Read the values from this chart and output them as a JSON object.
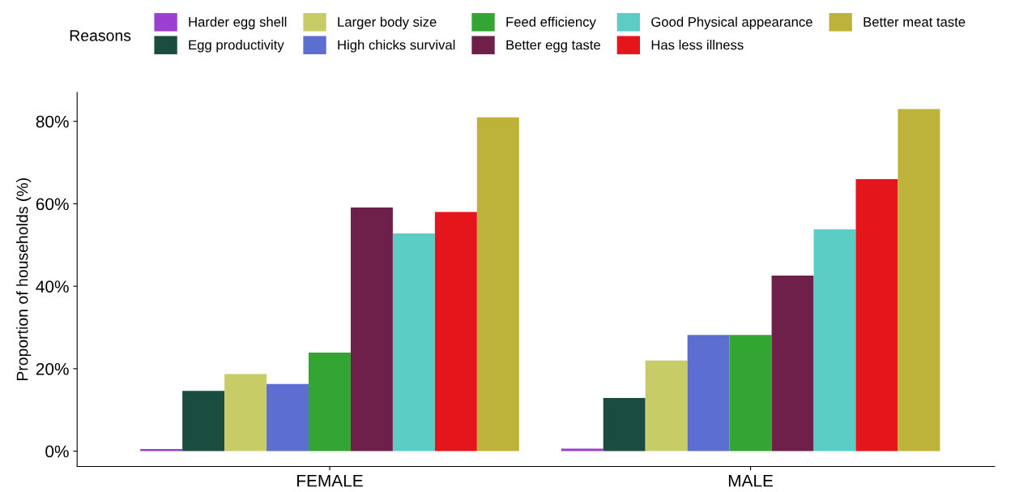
{
  "chart_data": {
    "type": "bar",
    "ylabel": "Proportion of households (%)",
    "legend_title": "Reasons",
    "categories": [
      "FEMALE",
      "MALE"
    ],
    "series": [
      {
        "name": "Harder egg shell",
        "color": "#9b3fd0",
        "values": [
          0.5,
          0.6
        ]
      },
      {
        "name": "Egg productivity",
        "color": "#1a4d40",
        "values": [
          14.6,
          12.9
        ]
      },
      {
        "name": "Larger body size",
        "color": "#c8cc66",
        "values": [
          18.7,
          22.0
        ]
      },
      {
        "name": "High chicks survival",
        "color": "#5c6fd0",
        "values": [
          16.3,
          28.2
        ]
      },
      {
        "name": "Feed efficiency",
        "color": "#33a532",
        "values": [
          23.9,
          28.2
        ]
      },
      {
        "name": "Better egg taste",
        "color": "#6e1f4a",
        "values": [
          59.1,
          42.6
        ]
      },
      {
        "name": "Good Physical appearance",
        "color": "#5ccdc4",
        "values": [
          52.8,
          53.8
        ]
      },
      {
        "name": "Has less illness",
        "color": "#e5161b",
        "values": [
          58.0,
          66.0
        ]
      },
      {
        "name": "Better meat taste",
        "color": "#bdb33a",
        "values": [
          81.0,
          83.0
        ]
      }
    ],
    "ylim": [
      -3.7,
      87
    ],
    "yticks": [
      {
        "value": 0,
        "label": "0%"
      },
      {
        "value": 20,
        "label": "20%"
      },
      {
        "value": 40,
        "label": "40%"
      },
      {
        "value": 60,
        "label": "60%"
      },
      {
        "value": 80,
        "label": "80%"
      }
    ],
    "grid": false,
    "legend": "top"
  }
}
